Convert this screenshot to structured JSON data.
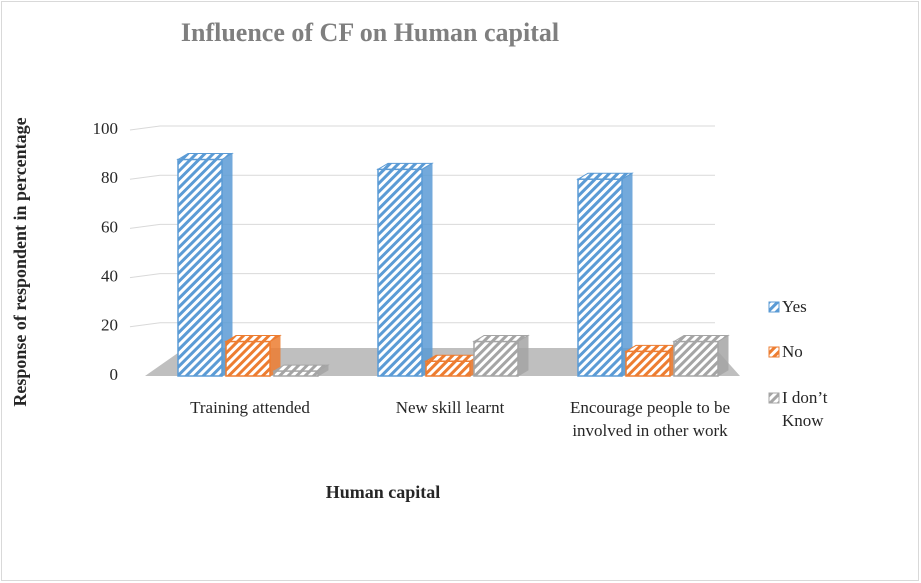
{
  "chart_data": {
    "type": "bar3d",
    "title": "Influence of CF on Human capital",
    "xlabel": "Human capital",
    "ylabel": "Response of respondent in percentage",
    "categories": [
      "Training attended",
      "New skill learnt",
      "Encourage people to be involved in other work"
    ],
    "series": [
      {
        "name": "Yes",
        "color": "#5b9bd5",
        "values": [
          88,
          84,
          80
        ]
      },
      {
        "name": "No",
        "color": "#ed7d31",
        "values": [
          14,
          6,
          10
        ]
      },
      {
        "name": "I don’t Know",
        "color": "#a5a5a5",
        "values": [
          2,
          14,
          14
        ]
      }
    ],
    "ylim": [
      0,
      100
    ],
    "yticks": [
      0,
      20,
      40,
      60,
      80,
      100
    ],
    "grid": true,
    "legend": "right"
  }
}
